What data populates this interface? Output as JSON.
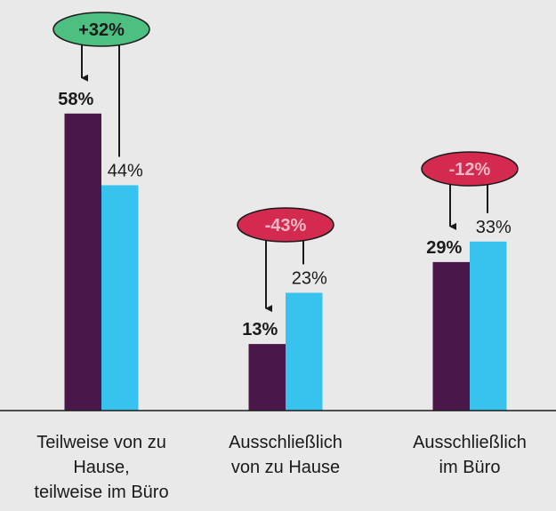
{
  "chart_data": {
    "type": "bar",
    "categories": [
      [
        "Teilweise von zu",
        "Hause,",
        "teilweise im Büro"
      ],
      [
        "Ausschließlich",
        "von zu Hause"
      ],
      [
        "Ausschließlich",
        "im Büro"
      ]
    ],
    "series": [
      {
        "color": "#4a1848",
        "values": [
          58,
          13,
          29
        ],
        "value_labels": [
          "58%",
          "13%",
          "29%"
        ]
      },
      {
        "color": "#38c3ef",
        "values": [
          44,
          23,
          33
        ],
        "value_labels": [
          "44%",
          "23%",
          "33%"
        ]
      }
    ],
    "annotations": [
      {
        "text": "+32%",
        "color": "#4dbf80",
        "text_color": "#1a1a1a"
      },
      {
        "text": "-43%",
        "color": "#d42a4f",
        "text_color": "#f2b8c6"
      },
      {
        "text": "-12%",
        "color": "#d42a4f",
        "text_color": "#f2b8c6"
      }
    ],
    "ylim": [
      0,
      80
    ]
  }
}
